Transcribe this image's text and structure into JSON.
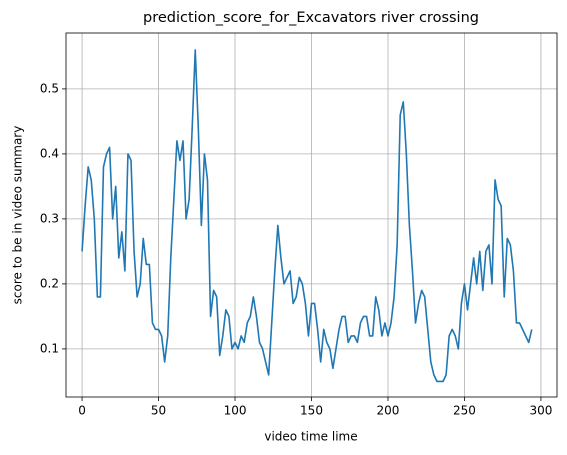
{
  "chart_data": {
    "type": "line",
    "title": "prediction_score_for_Excavators river crossing",
    "xlabel": "video time lime",
    "ylabel": "score to be in video summary",
    "x": [
      0,
      2,
      4,
      6,
      8,
      10,
      12,
      14,
      16,
      18,
      20,
      22,
      24,
      26,
      28,
      30,
      32,
      34,
      36,
      38,
      40,
      42,
      44,
      46,
      48,
      50,
      52,
      54,
      56,
      58,
      60,
      62,
      64,
      66,
      68,
      70,
      72,
      74,
      76,
      78,
      80,
      82,
      84,
      86,
      88,
      90,
      92,
      94,
      96,
      98,
      100,
      102,
      104,
      106,
      108,
      110,
      112,
      114,
      116,
      118,
      120,
      122,
      124,
      126,
      128,
      130,
      132,
      134,
      136,
      138,
      140,
      142,
      144,
      146,
      148,
      150,
      152,
      154,
      156,
      158,
      160,
      162,
      164,
      166,
      168,
      170,
      172,
      174,
      176,
      178,
      180,
      182,
      184,
      186,
      188,
      190,
      192,
      194,
      196,
      198,
      200,
      202,
      204,
      206,
      208,
      210,
      212,
      214,
      216,
      218,
      220,
      222,
      224,
      226,
      228,
      230,
      232,
      234,
      236,
      238,
      240,
      242,
      244,
      246,
      248,
      250,
      252,
      254,
      256,
      258,
      260,
      262,
      264,
      266,
      268,
      270,
      272,
      274,
      276,
      278,
      280,
      282,
      284,
      286,
      288,
      290,
      292,
      294
    ],
    "series": [
      {
        "name": "score",
        "color": "#1f77b4",
        "values": [
          0.25,
          0.32,
          0.38,
          0.36,
          0.3,
          0.18,
          0.18,
          0.38,
          0.4,
          0.41,
          0.3,
          0.35,
          0.24,
          0.28,
          0.22,
          0.4,
          0.39,
          0.25,
          0.18,
          0.2,
          0.27,
          0.23,
          0.23,
          0.14,
          0.13,
          0.13,
          0.12,
          0.08,
          0.12,
          0.24,
          0.33,
          0.42,
          0.39,
          0.42,
          0.3,
          0.33,
          0.44,
          0.56,
          0.44,
          0.29,
          0.4,
          0.36,
          0.15,
          0.19,
          0.18,
          0.09,
          0.12,
          0.16,
          0.15,
          0.1,
          0.11,
          0.1,
          0.12,
          0.11,
          0.14,
          0.15,
          0.18,
          0.15,
          0.11,
          0.1,
          0.08,
          0.06,
          0.14,
          0.22,
          0.29,
          0.24,
          0.2,
          0.21,
          0.22,
          0.17,
          0.18,
          0.21,
          0.2,
          0.17,
          0.12,
          0.17,
          0.17,
          0.13,
          0.08,
          0.13,
          0.11,
          0.1,
          0.07,
          0.1,
          0.13,
          0.15,
          0.15,
          0.11,
          0.12,
          0.12,
          0.11,
          0.14,
          0.15,
          0.15,
          0.12,
          0.12,
          0.18,
          0.16,
          0.12,
          0.14,
          0.12,
          0.14,
          0.18,
          0.26,
          0.46,
          0.48,
          0.4,
          0.29,
          0.22,
          0.14,
          0.17,
          0.19,
          0.18,
          0.13,
          0.08,
          0.06,
          0.05,
          0.05,
          0.05,
          0.06,
          0.12,
          0.13,
          0.12,
          0.1,
          0.17,
          0.2,
          0.16,
          0.2,
          0.24,
          0.2,
          0.25,
          0.19,
          0.25,
          0.26,
          0.2,
          0.36,
          0.33,
          0.32,
          0.18,
          0.27,
          0.26,
          0.22,
          0.14,
          0.14,
          0.13,
          0.12,
          0.11,
          0.13
        ]
      }
    ],
    "xlim": [
      -10.5,
      310.5
    ],
    "xticks": [
      0,
      50,
      100,
      150,
      200,
      250,
      300
    ],
    "ylim": [
      0.026,
      0.586
    ],
    "yticks": [
      0.1,
      0.2,
      0.3,
      0.4,
      0.5
    ],
    "grid": true
  }
}
